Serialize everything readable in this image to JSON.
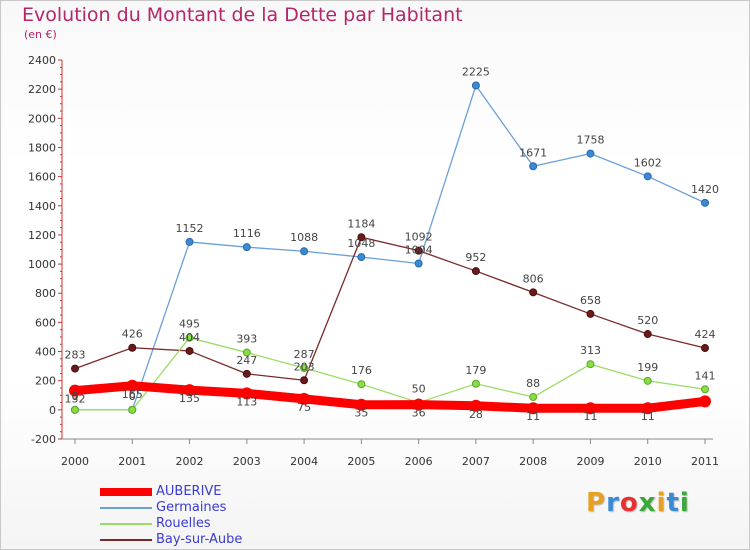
{
  "title": "Evolution du Montant de la Dette par Habitant",
  "subtitle": "(en €)",
  "logo": {
    "text": "Proxiti",
    "colors": [
      "#e8a020",
      "#3a8ad6",
      "#e83030",
      "#3aa83a",
      "#e8a020",
      "#3a8ad6",
      "#3aa83a"
    ]
  },
  "chart_data": {
    "type": "line",
    "x": [
      "2000",
      "2001",
      "2002",
      "2003",
      "2004",
      "2005",
      "2006",
      "2007",
      "2008",
      "2009",
      "2010",
      "2011"
    ],
    "ylim": [
      -200,
      2400
    ],
    "yticks": [
      "-200",
      "0",
      "200",
      "400",
      "600",
      "800",
      "1000",
      "1200",
      "1400",
      "1600",
      "1800",
      "2000",
      "2200",
      "2400"
    ],
    "grid": false,
    "legend_position": "bottom-left",
    "series": [
      {
        "name": "AUBERIVE",
        "color": "#ff0000",
        "values": [
          132,
          165,
          135,
          113,
          75,
          35,
          36,
          28,
          11,
          11,
          11,
          58
        ],
        "labels": [
          "132",
          "165",
          "135",
          "113",
          "75",
          "35",
          "36",
          "28",
          "11",
          "11",
          "11",
          ""
        ]
      },
      {
        "name": "Germaines",
        "color": "#6aa0d8",
        "values": [
          0,
          0,
          1152,
          1116,
          1088,
          1048,
          1004,
          2225,
          1671,
          1758,
          1602,
          1420
        ],
        "labels": [
          "0",
          "0",
          "1152",
          "1116",
          "1088",
          "1048",
          "1004",
          "2225",
          "1671",
          "1758",
          "1602",
          "1420"
        ]
      },
      {
        "name": "Rouelles",
        "color": "#99dd66",
        "values": [
          0,
          0,
          495,
          393,
          287,
          176,
          50,
          179,
          88,
          313,
          199,
          141
        ],
        "labels": [
          "0",
          "0",
          "495",
          "393",
          "287",
          "176",
          "50",
          "179",
          "88",
          "313",
          "199",
          "141"
        ]
      },
      {
        "name": "Bay-sur-Aube",
        "color": "#7a2a2a",
        "values": [
          283,
          426,
          404,
          247,
          203,
          1184,
          1092,
          952,
          806,
          658,
          520,
          424
        ],
        "labels": [
          "283",
          "426",
          "404",
          "247",
          "203",
          "1184",
          "1092",
          "952",
          "806",
          "658",
          "520",
          "424"
        ]
      }
    ]
  }
}
